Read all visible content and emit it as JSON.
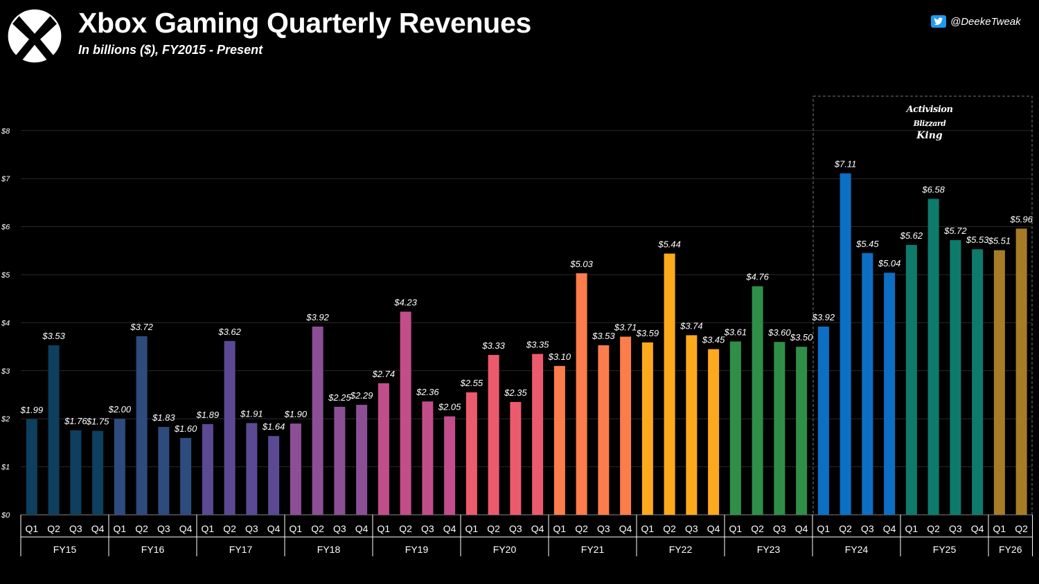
{
  "header": {
    "title": "Xbox Gaming Quarterly Revenues",
    "subtitle": "In billions ($), FY2015 - Present",
    "credit_handle": "@DeekeTweak",
    "logo_icon": "xbox-logo-icon",
    "credit_icon": "twitter-bird-icon"
  },
  "annotation": {
    "brand_line1": "Activision",
    "brand_line2": "Blizzard",
    "brand_line3": "King"
  },
  "chart_data": {
    "type": "bar",
    "title": "Xbox Gaming Quarterly Revenues",
    "subtitle": "In billions ($), FY2015 - Present",
    "ylim": [
      0,
      8
    ],
    "yticks": [
      "$0",
      "$1",
      "$2",
      "$3",
      "$4",
      "$5",
      "$6",
      "$7",
      "$8"
    ],
    "grid": true,
    "highlight_box": "FY24 Q1 - FY26 Q2",
    "groups": [
      {
        "name": "FY15",
        "color": "#0e3f5e",
        "quarters": [
          "Q1",
          "Q2",
          "Q3",
          "Q4"
        ],
        "values": [
          1.99,
          3.53,
          1.76,
          1.75
        ],
        "labels": [
          "$1.99",
          "$3.53",
          "$1.76",
          "$1.75"
        ]
      },
      {
        "name": "FY16",
        "color": "#2e4b7e",
        "quarters": [
          "Q1",
          "Q2",
          "Q3",
          "Q4"
        ],
        "values": [
          2.0,
          3.72,
          1.83,
          1.6
        ],
        "labels": [
          "$2.00",
          "$3.72",
          "$1.83",
          "$1.60"
        ]
      },
      {
        "name": "FY17",
        "color": "#5b4a93",
        "quarters": [
          "Q1",
          "Q2",
          "Q3",
          "Q4"
        ],
        "values": [
          1.89,
          3.62,
          1.91,
          1.64
        ],
        "labels": [
          "$1.89",
          "$3.62",
          "$1.91",
          "$1.64"
        ]
      },
      {
        "name": "FY18",
        "color": "#8c4f96",
        "quarters": [
          "Q1",
          "Q2",
          "Q3",
          "Q4"
        ],
        "values": [
          1.9,
          3.92,
          2.25,
          2.29
        ],
        "labels": [
          "$1.90",
          "$3.92",
          "$2.25",
          "$2.29"
        ]
      },
      {
        "name": "FY19",
        "color": "#c14e8a",
        "quarters": [
          "Q1",
          "Q2",
          "Q3",
          "Q4"
        ],
        "values": [
          2.74,
          4.23,
          2.36,
          2.05
        ],
        "labels": [
          "$2.74",
          "$4.23",
          "$2.36",
          "$2.05"
        ]
      },
      {
        "name": "FY20",
        "color": "#ec5a6e",
        "quarters": [
          "Q1",
          "Q2",
          "Q3",
          "Q4"
        ],
        "values": [
          2.55,
          3.33,
          2.35,
          3.35
        ],
        "labels": [
          "$2.55",
          "$3.33",
          "$2.35",
          "$3.35"
        ]
      },
      {
        "name": "FY21",
        "color": "#fb7d4b",
        "quarters": [
          "Q1",
          "Q2",
          "Q3",
          "Q4"
        ],
        "values": [
          3.1,
          5.03,
          3.53,
          3.71
        ],
        "labels": [
          "$3.10",
          "$5.03",
          "$3.53",
          "$3.71"
        ]
      },
      {
        "name": "FY22",
        "color": "#fca91d",
        "quarters": [
          "Q1",
          "Q2",
          "Q3",
          "Q4"
        ],
        "values": [
          3.59,
          5.44,
          3.74,
          3.45
        ],
        "labels": [
          "$3.59",
          "$5.44",
          "$3.74",
          "$3.45"
        ]
      },
      {
        "name": "FY23",
        "color": "#2f8f47",
        "quarters": [
          "Q1",
          "Q2",
          "Q3",
          "Q4"
        ],
        "values": [
          3.61,
          4.76,
          3.6,
          3.5
        ],
        "labels": [
          "$3.61",
          "$4.76",
          "$3.60",
          "$3.50"
        ]
      },
      {
        "name": "FY24",
        "color": "#0d6fc4",
        "quarters": [
          "Q1",
          "Q2",
          "Q3",
          "Q4"
        ],
        "values": [
          3.92,
          7.11,
          5.45,
          5.04
        ],
        "labels": [
          "$3.92",
          "$7.11",
          "$5.45",
          "$5.04"
        ]
      },
      {
        "name": "FY25",
        "color": "#0e7a6c",
        "quarters": [
          "Q1",
          "Q2",
          "Q3",
          "Q4"
        ],
        "values": [
          5.62,
          6.58,
          5.72,
          5.53
        ],
        "labels": [
          "$5.62",
          "$6.58",
          "$5.72",
          "$5.53"
        ]
      },
      {
        "name": "FY26",
        "color": "#a67c27",
        "quarters": [
          "Q1",
          "Q2"
        ],
        "values": [
          5.51,
          5.96
        ],
        "labels": [
          "$5.51",
          "$5.96"
        ]
      }
    ]
  }
}
